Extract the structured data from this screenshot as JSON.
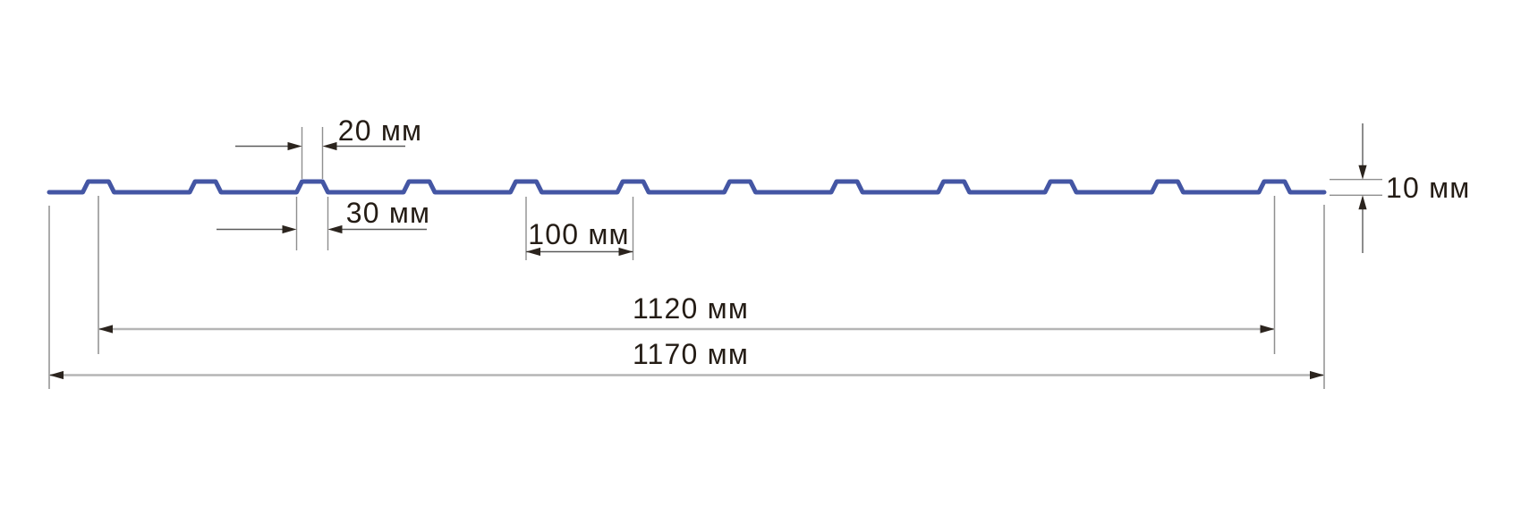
{
  "diagram": {
    "type": "profile-sheet-cross-section",
    "unit": "мм",
    "labels": {
      "rib_top_width": "20 мм",
      "rib_base_width": "30 мм",
      "rib_pitch": "100 мм",
      "working_width": "1120 мм",
      "overall_width": "1170 мм",
      "profile_height": "10 мм"
    },
    "dimensions_mm": {
      "rib_top_width": 20,
      "rib_base_width": 30,
      "rib_pitch": 100,
      "working_width": 1120,
      "overall_width": 1170,
      "profile_height": 10
    },
    "geometry": {
      "rib_count": 12
    },
    "colors": {
      "profile": "#4456a4",
      "extension_line": "#8f8f8f",
      "dimension_line": "#5a5a5a",
      "long_dimension_line": "#b5b5b5",
      "arrowhead": "#2b241e",
      "label_text": "#241c15",
      "background": "#ffffff"
    }
  }
}
